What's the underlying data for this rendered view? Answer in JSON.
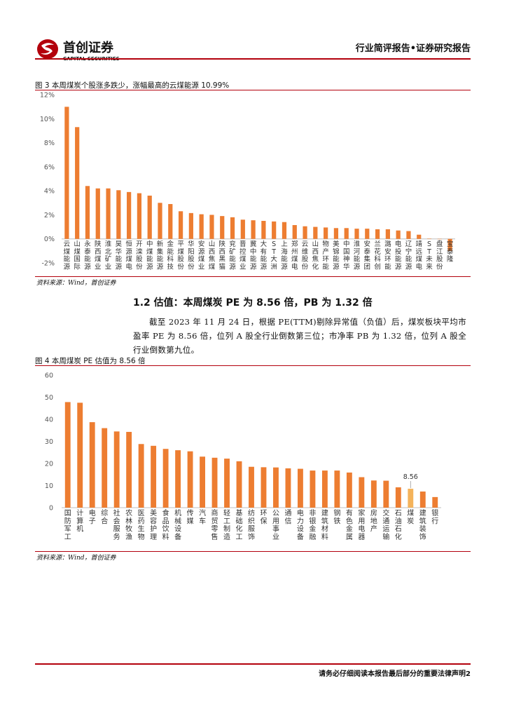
{
  "header": {
    "logo_cn": "首创证券",
    "logo_en": "CAPITAL SECURITIES",
    "right_title": "行业简评报告•证券研究报告",
    "brand_color": "#b3000c"
  },
  "figure3": {
    "title": "图 3 本周煤炭个股涨多跌少，涨幅最高的云煤能源 10.99%",
    "source": "资料来源：Wind，首创证券"
  },
  "section": {
    "title": "1.2 估值：本周煤炭 PE 为 8.56 倍，PB 为 1.32 倍",
    "paragraph": "截至 2023 年 11 月 24 日，根据 PE(TTM)剔除异常值（负值）后，煤炭板块平均市盈率 PE 为 8.56 倍，位列 A 股全行业倒数第三位；市净率 PB 为 1.32 倍，位列 A 股全行业倒数第九位。"
  },
  "figure4": {
    "title": "图 4 本周煤炭 PE 估值为 8.56 倍",
    "source": "资料来源：Wind，首创证券"
  },
  "footer": {
    "text": "请务必仔细阅读本报告最后部分的重要法律声明2"
  },
  "chart_data": [
    {
      "type": "bar",
      "bar_color": "#ed7d31",
      "ylim": [
        -2,
        12
      ],
      "yticks": [
        "-2%",
        "0%",
        "2%",
        "4%",
        "6%",
        "8%",
        "10%",
        "12%"
      ],
      "ytick_values": [
        -2,
        0,
        2,
        4,
        6,
        8,
        10,
        12
      ],
      "grid": false,
      "categories": [
        "云煤能源",
        "山煤国际",
        "永泰能源",
        "陕西煤业",
        "淮北矿业",
        "昊华能源",
        "恒源煤电",
        "开滦股份",
        "中煤能源",
        "新集能源",
        "金能科技",
        "平煤股份",
        "华阳股份",
        "安源煤业",
        "山西焦煤",
        "陕西黑猫",
        "兖矿能源",
        "晋控煤业",
        "冀中能源",
        "大有能源",
        "ST大洲",
        "上海能源",
        "郑州煤电",
        "云维股份",
        "山西焦化",
        "物产环能",
        "美锦能源",
        "中国神华",
        "淮河能源",
        "安泰集团",
        "兰花科创",
        "潞安环能",
        "电投能源",
        "辽宁能源",
        "靖远煤电",
        "ST未来",
        "盘江股份",
        "宝泰隆"
      ],
      "values": [
        10.99,
        9.3,
        4.4,
        4.2,
        4.2,
        4.05,
        3.9,
        3.8,
        3.6,
        3.0,
        2.9,
        2.3,
        2.15,
        2.05,
        2.0,
        1.9,
        1.8,
        1.6,
        1.55,
        1.5,
        1.45,
        1.4,
        1.15,
        1.05,
        1.0,
        0.95,
        0.9,
        0.9,
        0.85,
        0.85,
        0.8,
        0.8,
        0.7,
        0.65,
        0.35,
        0.02,
        0.0,
        -1.0
      ]
    },
    {
      "type": "bar",
      "bar_color": "#ed7d31",
      "highlight_color": "#f4b35b",
      "highlight_label": "8.56",
      "ylim": [
        0,
        60
      ],
      "yticks": [
        "0",
        "10",
        "20",
        "30",
        "40",
        "50",
        "60"
      ],
      "ytick_values": [
        0,
        10,
        20,
        30,
        40,
        50,
        60
      ],
      "grid": false,
      "categories": [
        "国防军工",
        "计算机",
        "电子",
        "综合",
        "社会服务",
        "农林牧渔",
        "医药生物",
        "美容护理",
        "食品饮料",
        "机械设备",
        "传媒",
        "汽车",
        "商贸零售",
        "轻工制造",
        "基础化工",
        "纺织服饰",
        "环保",
        "公用事业",
        "通信",
        "电力设备",
        "非银金融",
        "建筑材料",
        "钢铁",
        "有色金属",
        "家用电器",
        "房地产",
        "交通运输",
        "石油石化",
        "煤炭",
        "建筑装饰",
        "银行"
      ],
      "values": [
        47.8,
        47.5,
        38.7,
        36.0,
        34.5,
        34.3,
        28.8,
        28.0,
        26.6,
        26.0,
        25.5,
        23.1,
        22.6,
        22.2,
        21.0,
        18.5,
        18.3,
        18.2,
        17.8,
        17.6,
        16.8,
        16.8,
        16.8,
        15.9,
        13.8,
        12.3,
        12.2,
        9.2,
        8.56,
        7.3,
        4.8
      ],
      "highlight_index": 28
    }
  ]
}
